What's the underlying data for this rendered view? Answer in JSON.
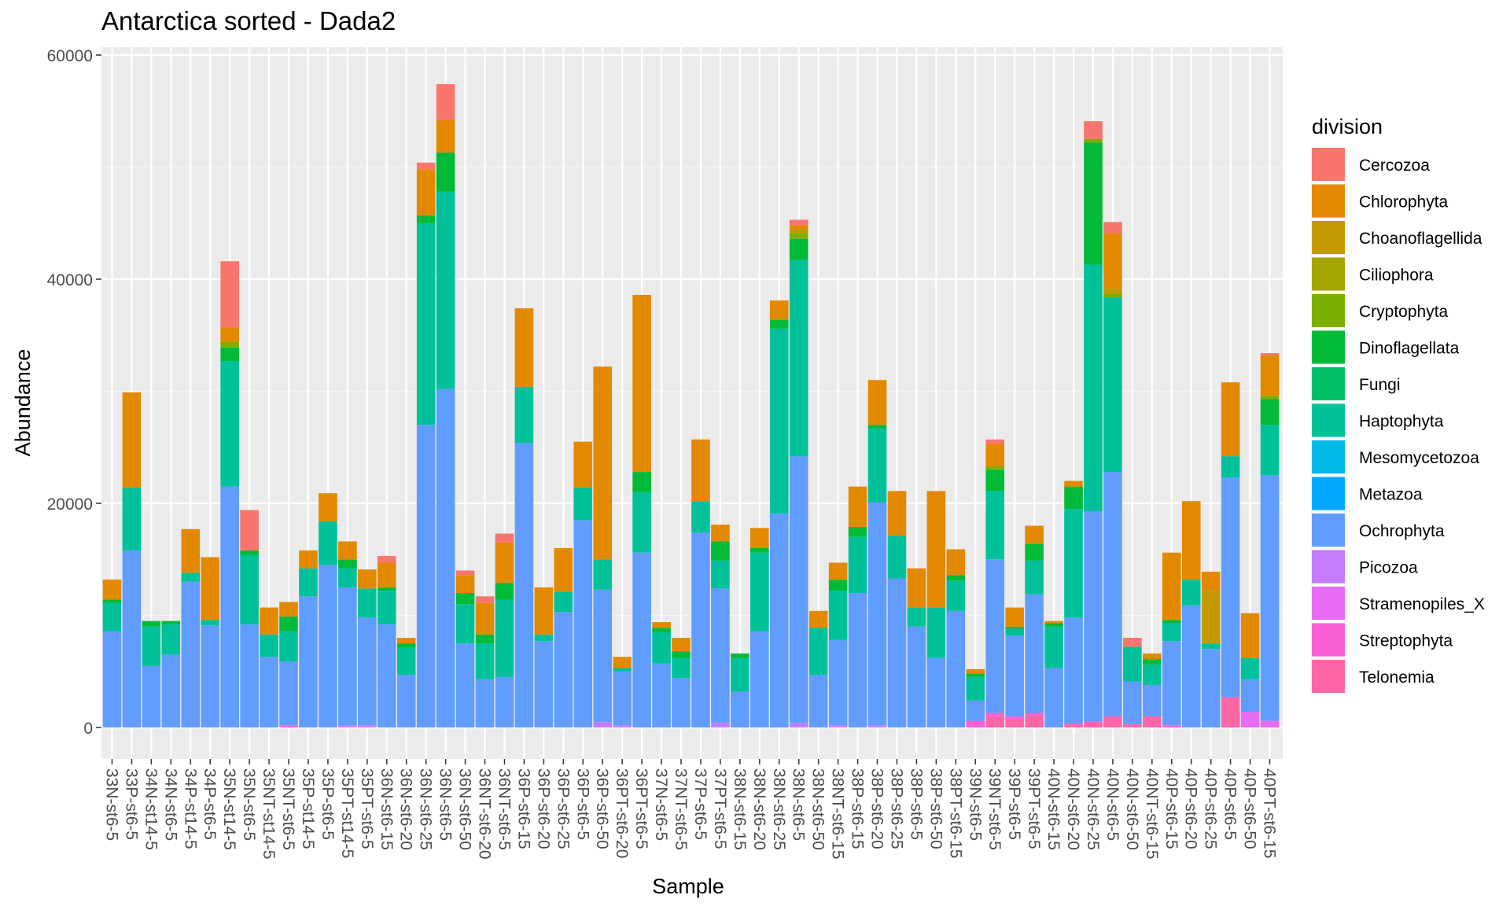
{
  "chart_data": {
    "type": "bar",
    "stacked": true,
    "title": "Antarctica sorted - Dada2",
    "xlabel": "Sample",
    "ylabel": "Abundance",
    "ylim": [
      0,
      60000
    ],
    "yticks": [
      0,
      20000,
      40000,
      60000
    ],
    "ytick_labels": [
      "0",
      "20000",
      "40000",
      "60000"
    ],
    "grid": true,
    "legend_title": "division",
    "legend_position": "right",
    "categories": [
      "33N-st6-5",
      "33P-st6-5",
      "34N-st14-5",
      "34N-st6-5",
      "34P-st14-5",
      "34P-st6-5",
      "35N-st14-5",
      "35N-st6-5",
      "35NT-st14-5",
      "35NT-st6-5",
      "35P-st14-5",
      "35P-st6-5",
      "35PT-st14-5",
      "35PT-st6-5",
      "36N-st6-15",
      "36N-st6-20",
      "36N-st6-25",
      "36N-st6-5",
      "36N-st6-50",
      "36NT-st6-20",
      "36NT-st6-5",
      "36P-st6-15",
      "36P-st6-20",
      "36P-st6-25",
      "36P-st6-5",
      "36P-st6-50",
      "36PT-st6-20",
      "36PT-st6-5",
      "37N-st6-5",
      "37NT-st6-5",
      "37P-st6-5",
      "37PT-st6-5",
      "38N-st6-15",
      "38N-st6-20",
      "38N-st6-25",
      "38N-st6-5",
      "38N-st6-50",
      "38NT-st6-15",
      "38P-st6-15",
      "38P-st6-20",
      "38P-st6-25",
      "38P-st6-5",
      "38P-st6-50",
      "38PT-st6-15",
      "39N-st6-5",
      "39NT-st6-5",
      "39P-st6-5",
      "39PT-st6-5",
      "40N-st6-15",
      "40N-st6-20",
      "40N-st6-25",
      "40N-st6-5",
      "40N-st6-50",
      "40NT-st6-15",
      "40P-st6-15",
      "40P-st6-20",
      "40P-st6-25",
      "40P-st6-5",
      "40P-st6-50",
      "40PT-st6-15"
    ],
    "series": [
      {
        "name": "Telonemia",
        "color": "#FF66A8",
        "values": [
          0,
          0,
          0,
          0,
          0,
          0,
          0,
          0,
          0,
          0,
          0,
          0,
          0,
          0,
          0,
          0,
          0,
          0,
          0,
          0,
          0,
          0,
          0,
          0,
          0,
          0,
          0,
          0,
          0,
          0,
          0,
          0,
          0,
          0,
          0,
          0,
          0,
          0,
          0,
          0,
          0,
          0,
          0,
          0,
          0,
          1000,
          700,
          1100,
          0,
          300,
          500,
          1000,
          300,
          1000,
          0,
          0,
          0,
          2700,
          0,
          0
        ]
      },
      {
        "name": "Streptophyta",
        "color": "#FB61D7",
        "values": [
          0,
          0,
          0,
          0,
          0,
          0,
          0,
          0,
          0,
          200,
          0,
          0,
          0,
          0,
          0,
          0,
          0,
          0,
          0,
          0,
          0,
          0,
          0,
          0,
          0,
          0,
          0,
          0,
          0,
          0,
          0,
          0,
          0,
          0,
          0,
          0,
          0,
          0,
          0,
          0,
          0,
          0,
          0,
          0,
          600,
          300,
          300,
          200,
          0,
          0,
          0,
          0,
          0,
          0,
          200,
          0,
          0,
          0,
          0,
          0
        ]
      },
      {
        "name": "Stramenopiles_X",
        "color": "#E76BF3",
        "values": [
          0,
          0,
          0,
          0,
          0,
          0,
          0,
          0,
          0,
          0,
          0,
          0,
          0,
          0,
          0,
          0,
          0,
          0,
          0,
          0,
          0,
          0,
          0,
          0,
          0,
          0,
          0,
          0,
          0,
          0,
          0,
          0,
          0,
          0,
          0,
          0,
          0,
          0,
          0,
          0,
          0,
          0,
          0,
          0,
          0,
          0,
          0,
          0,
          0,
          0,
          0,
          0,
          0,
          0,
          0,
          0,
          0,
          0,
          1400,
          600
        ]
      },
      {
        "name": "Picozoa",
        "color": "#C77CFF",
        "values": [
          0,
          0,
          0,
          0,
          0,
          0,
          0,
          0,
          0,
          0,
          0,
          0,
          200,
          200,
          0,
          0,
          0,
          0,
          0,
          0,
          0,
          0,
          0,
          0,
          0,
          500,
          200,
          0,
          0,
          0,
          0,
          400,
          0,
          0,
          0,
          400,
          0,
          200,
          0,
          200,
          0,
          0,
          0,
          0,
          0,
          0,
          0,
          0,
          0,
          0,
          0,
          0,
          0,
          0,
          0,
          0,
          0,
          0,
          0,
          0
        ]
      },
      {
        "name": "Ochrophyta",
        "color": "#619CFF",
        "values": [
          8600,
          15800,
          5500,
          6500,
          13000,
          9100,
          21500,
          9200,
          6300,
          5700,
          11700,
          14500,
          12300,
          9600,
          9200,
          4700,
          27000,
          30200,
          7500,
          4300,
          4500,
          25400,
          7700,
          10300,
          18500,
          11800,
          4800,
          15600,
          5700,
          4400,
          17400,
          12000,
          3200,
          8600,
          19100,
          23800,
          4700,
          7600,
          12000,
          19900,
          13300,
          9000,
          6200,
          10400,
          1800,
          13700,
          7200,
          10600,
          5300,
          9500,
          18800,
          21800,
          3800,
          2800,
          7500,
          10900,
          7000,
          19600,
          2900,
          21900
        ]
      },
      {
        "name": "Metazoa",
        "color": "#00A9FF",
        "values": [
          0,
          0,
          0,
          0,
          0,
          0,
          0,
          0,
          0,
          0,
          0,
          0,
          0,
          0,
          0,
          0,
          0,
          0,
          0,
          0,
          0,
          0,
          0,
          0,
          0,
          0,
          0,
          0,
          0,
          0,
          0,
          0,
          0,
          0,
          0,
          0,
          0,
          0,
          0,
          0,
          0,
          0,
          0,
          0,
          0,
          0,
          0,
          0,
          0,
          0,
          0,
          0,
          0,
          0,
          0,
          0,
          0,
          0,
          0,
          0
        ]
      },
      {
        "name": "Mesomycetozoa",
        "color": "#00B8E7",
        "values": [
          0,
          0,
          0,
          0,
          0,
          0,
          0,
          0,
          0,
          0,
          0,
          0,
          0,
          0,
          0,
          0,
          0,
          0,
          0,
          0,
          0,
          0,
          0,
          0,
          0,
          0,
          0,
          0,
          0,
          0,
          0,
          0,
          0,
          0,
          0,
          0,
          0,
          0,
          0,
          0,
          0,
          0,
          0,
          0,
          0,
          0,
          0,
          0,
          0,
          0,
          0,
          0,
          0,
          0,
          0,
          0,
          0,
          0,
          0,
          0
        ]
      },
      {
        "name": "Haptophyta",
        "color": "#00C19A",
        "values": [
          2500,
          5600,
          3500,
          2700,
          800,
          500,
          11200,
          6200,
          2000,
          2700,
          2500,
          3900,
          1700,
          2600,
          3000,
          2400,
          18000,
          17600,
          3500,
          3200,
          6900,
          5000,
          600,
          1800,
          2900,
          2700,
          300,
          5400,
          2800,
          1800,
          2800,
          2500,
          3000,
          7000,
          16500,
          17500,
          4200,
          4400,
          5000,
          6600,
          3800,
          1700,
          4500,
          2700,
          2100,
          6100,
          600,
          3000,
          3700,
          9700,
          22000,
          15600,
          3100,
          1800,
          1600,
          2300,
          500,
          1900,
          1900,
          4500
        ]
      },
      {
        "name": "Fungi",
        "color": "#00BE67",
        "values": [
          0,
          0,
          0,
          0,
          0,
          0,
          0,
          0,
          0,
          0,
          0,
          0,
          0,
          0,
          0,
          0,
          0,
          0,
          0,
          0,
          0,
          0,
          0,
          0,
          0,
          0,
          0,
          0,
          0,
          0,
          0,
          0,
          0,
          0,
          0,
          0,
          0,
          0,
          0,
          0,
          0,
          0,
          0,
          0,
          0,
          0,
          0,
          0,
          0,
          0,
          0,
          0,
          0,
          0,
          0,
          0,
          0,
          0,
          0,
          0
        ]
      },
      {
        "name": "Dinoflagellata",
        "color": "#00BA38",
        "values": [
          300,
          0,
          500,
          300,
          0,
          0,
          1200,
          400,
          0,
          1300,
          0,
          0,
          800,
          0,
          300,
          400,
          700,
          3500,
          1000,
          800,
          1500,
          0,
          0,
          0,
          0,
          0,
          0,
          1800,
          400,
          600,
          0,
          1700,
          400,
          400,
          800,
          1900,
          0,
          1000,
          900,
          300,
          0,
          0,
          0,
          500,
          300,
          1900,
          200,
          1500,
          300,
          2000,
          10900,
          0,
          0,
          500,
          300,
          0,
          0,
          0,
          0,
          2300
        ]
      },
      {
        "name": "Cryptophyta",
        "color": "#7CAE00",
        "values": [
          0,
          0,
          0,
          0,
          0,
          0,
          500,
          0,
          0,
          0,
          0,
          0,
          0,
          0,
          0,
          0,
          0,
          0,
          0,
          0,
          0,
          0,
          0,
          0,
          0,
          0,
          0,
          0,
          0,
          0,
          0,
          0,
          0,
          0,
          0,
          400,
          0,
          0,
          0,
          0,
          0,
          0,
          0,
          0,
          0,
          300,
          0,
          0,
          0,
          0,
          300,
          300,
          0,
          0,
          0,
          0,
          0,
          0,
          0,
          300
        ]
      },
      {
        "name": "Ciliophora",
        "color": "#A3A500",
        "values": [
          0,
          0,
          0,
          0,
          0,
          0,
          0,
          0,
          0,
          0,
          0,
          0,
          0,
          0,
          0,
          0,
          0,
          0,
          0,
          0,
          0,
          0,
          0,
          0,
          0,
          0,
          0,
          0,
          0,
          0,
          0,
          0,
          0,
          0,
          0,
          400,
          0,
          0,
          0,
          0,
          0,
          0,
          0,
          0,
          0,
          0,
          0,
          0,
          0,
          0,
          0,
          0,
          0,
          0,
          0,
          0,
          0,
          0,
          0,
          0
        ]
      },
      {
        "name": "Choanoflagellida",
        "color": "#C49A00",
        "values": [
          0,
          0,
          0,
          0,
          0,
          0,
          0,
          0,
          0,
          0,
          0,
          0,
          0,
          0,
          0,
          0,
          0,
          0,
          0,
          0,
          0,
          0,
          0,
          0,
          0,
          0,
          0,
          0,
          0,
          0,
          0,
          0,
          0,
          0,
          0,
          0,
          0,
          0,
          0,
          0,
          0,
          0,
          0,
          0,
          0,
          0,
          0,
          0,
          0,
          0,
          0,
          500,
          0,
          0,
          0,
          0,
          4700,
          0,
          0,
          0
        ]
      },
      {
        "name": "Chlorophyta",
        "color": "#E38900",
        "values": [
          1800,
          8500,
          0,
          0,
          3900,
          5600,
          1300,
          0,
          2400,
          1300,
          1600,
          2500,
          1600,
          1700,
          2200,
          500,
          4100,
          2900,
          1600,
          2800,
          3600,
          7000,
          4200,
          3900,
          4100,
          17200,
          1000,
          15800,
          500,
          1200,
          5500,
          1500,
          0,
          1800,
          1700,
          400,
          1500,
          1500,
          3600,
          4000,
          4000,
          3500,
          10400,
          2300,
          400,
          2000,
          1700,
          1600,
          200,
          500,
          0,
          4900,
          0,
          500,
          6000,
          7000,
          1700,
          6600,
          4000,
          3600
        ]
      },
      {
        "name": "Cercozoa",
        "color": "#F8766D",
        "values": [
          0,
          0,
          0,
          0,
          0,
          0,
          5900,
          3600,
          0,
          0,
          0,
          0,
          0,
          0,
          600,
          0,
          600,
          3200,
          400,
          600,
          800,
          0,
          0,
          0,
          0,
          0,
          0,
          0,
          0,
          0,
          0,
          0,
          0,
          0,
          0,
          500,
          0,
          0,
          0,
          0,
          0,
          0,
          0,
          0,
          0,
          400,
          0,
          0,
          0,
          0,
          1600,
          1000,
          800,
          0,
          0,
          0,
          0,
          0,
          0,
          200
        ]
      }
    ],
    "legend_order": [
      "Cercozoa",
      "Chlorophyta",
      "Choanoflagellida",
      "Ciliophora",
      "Cryptophyta",
      "Dinoflagellata",
      "Fungi",
      "Haptophyta",
      "Mesomycetozoa",
      "Metazoa",
      "Ochrophyta",
      "Picozoa",
      "Stramenopiles_X",
      "Streptophyta",
      "Telonemia"
    ]
  }
}
